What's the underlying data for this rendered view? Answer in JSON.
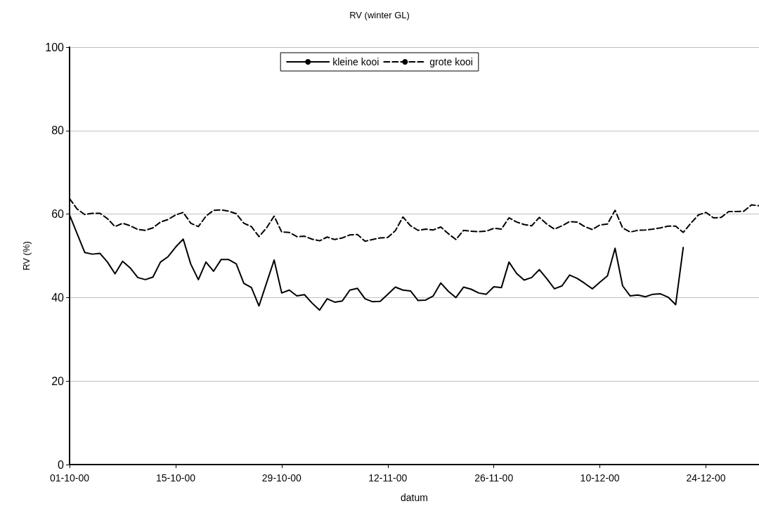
{
  "chart_data": {
    "type": "line",
    "title": "RV (winter GL)",
    "xlabel": "datum",
    "ylabel": "RV (%)",
    "x": [
      "2000-10-01",
      "2000-10-02",
      "2000-10-03",
      "2000-10-04",
      "2000-10-05",
      "2000-10-06",
      "2000-10-07",
      "2000-10-08",
      "2000-10-09",
      "2000-10-10",
      "2000-10-11",
      "2000-10-12",
      "2000-10-13",
      "2000-10-14",
      "2000-10-15",
      "2000-10-16",
      "2000-10-17",
      "2000-10-18",
      "2000-10-19",
      "2000-10-20",
      "2000-10-21",
      "2000-10-22",
      "2000-10-23",
      "2000-10-24",
      "2000-10-25",
      "2000-10-26",
      "2000-10-27",
      "2000-10-28",
      "2000-10-29",
      "2000-10-30",
      "2000-10-31",
      "2000-11-01",
      "2000-11-02",
      "2000-11-03",
      "2000-11-04",
      "2000-11-05",
      "2000-11-06",
      "2000-11-07",
      "2000-11-08",
      "2000-11-09",
      "2000-11-10",
      "2000-11-11",
      "2000-11-12",
      "2000-11-13",
      "2000-11-14",
      "2000-11-15",
      "2000-11-16",
      "2000-11-17",
      "2000-11-18",
      "2000-11-19",
      "2000-11-20",
      "2000-11-21",
      "2000-11-22",
      "2000-11-23",
      "2000-11-24",
      "2000-11-25",
      "2000-11-26",
      "2000-11-27",
      "2000-11-28",
      "2000-11-29",
      "2000-11-30",
      "2000-12-01",
      "2000-12-02",
      "2000-12-03",
      "2000-12-04",
      "2000-12-05",
      "2000-12-06",
      "2000-12-07",
      "2000-12-08",
      "2000-12-09",
      "2000-12-10",
      "2000-12-11",
      "2000-12-12",
      "2000-12-13",
      "2000-12-14",
      "2000-12-15",
      "2000-12-16",
      "2000-12-17",
      "2000-12-18",
      "2000-12-19",
      "2000-12-20",
      "2000-12-21",
      "2000-12-22",
      "2000-12-23",
      "2000-12-24",
      "2000-12-25",
      "2000-12-26",
      "2000-12-27",
      "2000-12-28",
      "2000-12-29",
      "2000-12-30",
      "2000-12-31"
    ],
    "series": [
      {
        "name": "kleine kooi",
        "color": "#000000",
        "line_style": "solid",
        "values": [
          59.8,
          55.3,
          50.8,
          50.4,
          50.6,
          48.5,
          45.7,
          48.7,
          47.1,
          44.8,
          44.3,
          44.9,
          48.5,
          49.8,
          52.1,
          54.0,
          48.0,
          44.3,
          48.5,
          46.3,
          49.1,
          49.1,
          48.1,
          43.4,
          42.4,
          38.0,
          43.5,
          49.0,
          41.1,
          41.8,
          40.4,
          40.7,
          38.7,
          37.0,
          39.7,
          38.9,
          39.2,
          41.8,
          42.2,
          39.7,
          39.0,
          39.1,
          40.8,
          42.5,
          41.8,
          41.6,
          39.3,
          39.4,
          40.4,
          43.5,
          41.5,
          40.0,
          42.5,
          42.0,
          41.1,
          40.8,
          42.6,
          42.4,
          48.5,
          45.8,
          44.2,
          44.8,
          46.7,
          44.5,
          42.1,
          42.8,
          45.4,
          44.6,
          43.4,
          42.1,
          43.7,
          45.2,
          51.8,
          42.8,
          40.4,
          40.6,
          40.2,
          40.8,
          40.9,
          40.1,
          38.3,
          52.0,
          null,
          null,
          null,
          null,
          null,
          null,
          null,
          null,
          null,
          null
        ]
      },
      {
        "name": "grote kooi",
        "color": "#000000",
        "line_style": "dashed",
        "values": [
          63.7,
          61.2,
          59.9,
          60.2,
          60.2,
          58.9,
          57.0,
          57.8,
          57.2,
          56.3,
          56.1,
          56.7,
          58.1,
          58.7,
          59.8,
          60.4,
          57.8,
          57.0,
          59.5,
          60.9,
          61.0,
          60.7,
          60.1,
          57.8,
          57.0,
          54.6,
          56.7,
          59.5,
          55.7,
          55.6,
          54.6,
          54.7,
          54.0,
          53.6,
          54.5,
          53.9,
          54.3,
          55.0,
          55.1,
          53.5,
          53.9,
          54.3,
          54.4,
          56.0,
          59.3,
          57.2,
          56.1,
          56.4,
          56.2,
          56.9,
          55.3,
          53.9,
          56.1,
          55.9,
          55.8,
          55.9,
          56.6,
          56.4,
          59.1,
          58.1,
          57.5,
          57.2,
          59.2,
          57.6,
          56.4,
          57.2,
          58.2,
          58.1,
          57.0,
          56.3,
          57.4,
          57.6,
          60.9,
          56.7,
          55.7,
          56.1,
          56.2,
          56.4,
          56.7,
          57.1,
          57.1,
          55.6,
          57.8,
          59.8,
          60.4,
          59.1,
          59.2,
          60.6,
          60.6,
          60.7,
          62.2,
          62.0
        ]
      }
    ],
    "xlim": [
      "2000-10-01",
      "2000-12-31"
    ],
    "xticks": [
      {
        "value": "2000-10-01",
        "label": "01-10-00"
      },
      {
        "value": "2000-10-15",
        "label": "15-10-00"
      },
      {
        "value": "2000-10-29",
        "label": "29-10-00"
      },
      {
        "value": "2000-11-12",
        "label": "12-11-00"
      },
      {
        "value": "2000-11-26",
        "label": "26-11-00"
      },
      {
        "value": "2000-12-10",
        "label": "10-12-00"
      },
      {
        "value": "2000-12-24",
        "label": "24-12-00"
      }
    ],
    "ylim": [
      0,
      100
    ],
    "yticks": [
      0,
      20,
      40,
      60,
      80,
      100
    ],
    "grid": "y",
    "legend": "top",
    "marker": "none"
  }
}
